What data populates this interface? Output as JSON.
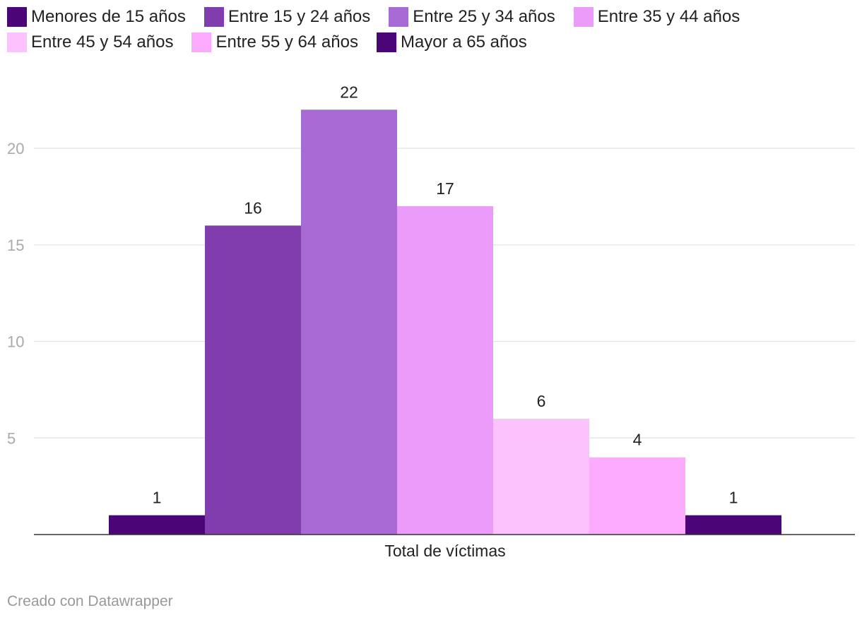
{
  "chart_data": {
    "type": "bar",
    "categories": [
      "Total de víctimas"
    ],
    "series": [
      {
        "name": "Menores de 15 años",
        "values": [
          1
        ],
        "color": "#4b0576"
      },
      {
        "name": "Entre 15 y 24 años",
        "values": [
          16
        ],
        "color": "#813cad"
      },
      {
        "name": "Entre 25 y 34 años",
        "values": [
          22
        ],
        "color": "#a86bd6"
      },
      {
        "name": "Entre 35 y 44 años",
        "values": [
          17
        ],
        "color": "#eb9cfb"
      },
      {
        "name": "Entre 45 y 54 años",
        "values": [
          6
        ],
        "color": "#fcc2fe"
      },
      {
        "name": "Entre 55 y 64 años",
        "values": [
          4
        ],
        "color": "#fbaafe"
      },
      {
        "name": "Mayor a 65 años",
        "values": [
          1
        ],
        "color": "#4b0576"
      }
    ],
    "yticks": [
      5,
      10,
      15,
      20
    ],
    "ylim": [
      0,
      23
    ],
    "grid": true,
    "legend_position": "top"
  },
  "credit": "Creado con Datawrapper"
}
